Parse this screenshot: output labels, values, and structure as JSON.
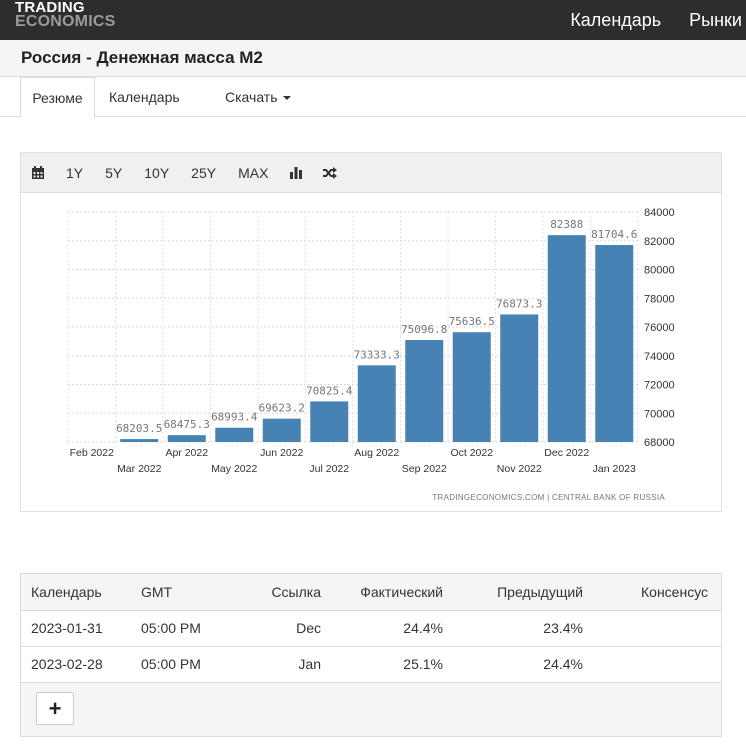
{
  "brand": {
    "line1": "TRADING",
    "line2": "ECONOMICS"
  },
  "topnav": [
    "Календарь",
    "Рынки"
  ],
  "page_title": "Россия - Денежная масса M2",
  "tabs": {
    "summary": "Резюме",
    "calendar": "Календарь",
    "download": "Скачать"
  },
  "toolbar": {
    "ranges": [
      "1Y",
      "5Y",
      "10Y",
      "25Y",
      "MAX"
    ],
    "icons": [
      "calendar-icon",
      "bar-chart-icon",
      "shuffle-icon"
    ]
  },
  "colors": {
    "bar": "#4682b4",
    "topbar": "#2d2d2d"
  },
  "chart_data": {
    "type": "bar",
    "categories": [
      "Feb 2022",
      "Mar 2022",
      "Apr 2022",
      "May 2022",
      "Jun 2022",
      "Jul 2022",
      "Aug 2022",
      "Sep 2022",
      "Oct 2022",
      "Nov 2022",
      "Dec 2022",
      "Jan 2023"
    ],
    "values": [
      null,
      68203.5,
      68475.3,
      68993.4,
      69623.2,
      70825.4,
      73333.3,
      75096.8,
      75636.5,
      76873.3,
      82388,
      81704.6
    ],
    "value_labels": [
      "",
      "68203.5",
      "68475.3",
      "68993.4",
      "69623.2",
      "70825.4",
      "73333.3",
      "75096.8",
      "75636.5",
      "76873.3",
      "82388",
      "81704.6"
    ],
    "y_ticks": [
      "68000",
      "70000",
      "72000",
      "74000",
      "76000",
      "78000",
      "80000",
      "82000",
      "84000"
    ],
    "ylim": [
      68000,
      84000
    ],
    "y_axis_side": "right",
    "grid": true,
    "source": "TRADINGECONOMICS.COM  |  CENTRAL BANK OF RUSSIA"
  },
  "calendar_table": {
    "headers": [
      "Календарь",
      "GMT",
      "Ссылка",
      "Фактический",
      "Предыдущий",
      "Консенсус"
    ],
    "rows": [
      [
        "2023-01-31",
        "05:00 PM",
        "Dec",
        "24.4%",
        "23.4%",
        ""
      ],
      [
        "2023-02-28",
        "05:00 PM",
        "Jan",
        "25.1%",
        "24.4%",
        ""
      ]
    ],
    "add_button": "+"
  }
}
